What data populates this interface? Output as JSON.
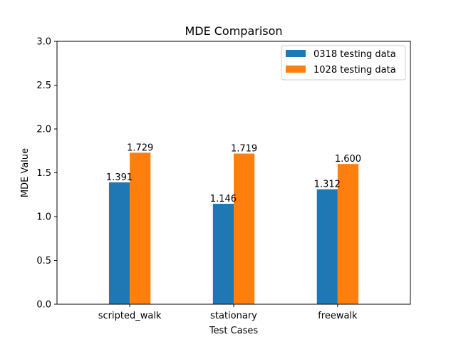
{
  "chart_data": {
    "type": "bar",
    "title": "MDE Comparison",
    "xlabel": "Test Cases",
    "ylabel": "MDE Value",
    "categories": [
      "scripted_walk",
      "stationary",
      "freewalk"
    ],
    "series": [
      {
        "name": "0318 testing data",
        "color": "#1f77b4",
        "values": [
          1.391,
          1.146,
          1.312
        ],
        "labels": [
          "1.391",
          "1.146",
          "1.312"
        ]
      },
      {
        "name": "1028 testing data",
        "color": "#ff7f0e",
        "values": [
          1.729,
          1.719,
          1.6
        ],
        "labels": [
          "1.729",
          "1.719",
          "1.600"
        ]
      }
    ],
    "ylim": [
      0,
      3.0
    ],
    "yticks": [
      "0.0",
      "0.5",
      "1.0",
      "1.5",
      "2.0",
      "2.5",
      "3.0"
    ],
    "grid": false,
    "legend_position": "top-right"
  }
}
